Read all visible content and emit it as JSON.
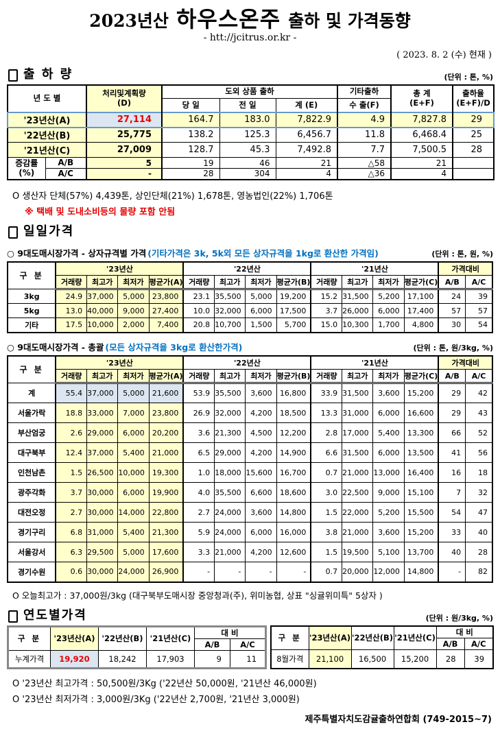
{
  "header": {
    "title_year": "2023년산",
    "title_product": "하우스온주",
    "title_rest": "출하 및 가격동향",
    "url": "- htt://jcitrus.or.kr -",
    "date": "( 2023. 8. 2 (수) 현재 )"
  },
  "shipment": {
    "section_title": "출 하 량",
    "unit": "(단위 : 톤, %)",
    "table": {
      "col_year": "년 도 별",
      "col_plan1": "처리및계획량",
      "col_plan2": "(D)",
      "col_group": "도외 상품 출하",
      "col_today": "당 일",
      "col_prev": "전 일",
      "col_sum": "계 (E)",
      "col_etc": "기타출하",
      "col_export": "수 출(F)",
      "col_total1": "총   계",
      "col_total2": "(E+F)",
      "col_rate1": "출하율",
      "col_rate2": "(E+F)/D",
      "rows": [
        {
          "label": "'23년산(A)",
          "plan": "27,114",
          "today": "164.7",
          "prev": "183.0",
          "sum": "7,822.9",
          "export": "4.9",
          "total": "7,827.8",
          "rate": "29"
        },
        {
          "label": "'22년산(B)",
          "plan": "25,775",
          "today": "138.2",
          "prev": "125.3",
          "sum": "6,456.7",
          "export": "11.8",
          "total": "6,468.4",
          "rate": "25"
        },
        {
          "label": "'21년산(C)",
          "plan": "27,009",
          "today": "128.7",
          "prev": "45.3",
          "sum": "7,492.8",
          "export": "7.7",
          "total": "7,500.5",
          "rate": "28"
        }
      ],
      "change_label1": "증감률",
      "change_label2": "(%)",
      "change_rows": [
        {
          "label": "A/B",
          "plan": "5",
          "today": "19",
          "prev": "46",
          "sum": "21",
          "export": "△58",
          "total": "21",
          "rate": ""
        },
        {
          "label": "A/C",
          "plan": "-",
          "today": "28",
          "prev": "304",
          "sum": "4",
          "export": "△36",
          "total": "4",
          "rate": ""
        }
      ]
    },
    "note1": "O 생산자 단체(57%) 4,439톤, 상인단체(21%) 1,678톤, 영농법인(22%) 1,706톤",
    "note2": "※ 택배 및 도내소비등의 물량 포함 안됨"
  },
  "daily": {
    "section_title": "일일가격",
    "sub1_title": "○ 9대도매시장가격 - 상자규격별 가격",
    "sub1_note": "(기타가격은 3k, 5k외 모든 상자규격을 1kg로 환산한 가격임)",
    "sub1_unit": "(단위 : 톤,  원, %)",
    "col_label": "구   분",
    "group_y23": "'23년산",
    "group_y22": "'22년산",
    "group_y21": "'21년산",
    "group_ratio": "가격대비",
    "sub_headers": [
      "거래량",
      "최고가",
      "최저가",
      "평균가(A)",
      "거래량",
      "최고가",
      "최저가",
      "평균가(B)",
      "거래량",
      "최고가",
      "최저가",
      "평균가(C)",
      "A/B",
      "A/C"
    ],
    "by_size_rows": [
      [
        "3kg",
        "24.9",
        "37,000",
        "5,000",
        "23,800",
        "23.1",
        "35,500",
        "5,000",
        "19,200",
        "15.2",
        "31,500",
        "5,200",
        "17,100",
        "24",
        "39"
      ],
      [
        "5kg",
        "13.0",
        "40,000",
        "9,000",
        "27,400",
        "10.0",
        "32,000",
        "6,000",
        "17,500",
        "3.7",
        "26,000",
        "6,000",
        "17,400",
        "57",
        "57"
      ],
      [
        "기타",
        "17.5",
        "10,000",
        "2,000",
        "7,400",
        "20.8",
        "10,700",
        "1,500",
        "5,700",
        "15.0",
        "10,300",
        "1,700",
        "4,800",
        "30",
        "54"
      ]
    ],
    "sub2_title": "○ 9대도매시장가격 - 총괄",
    "sub2_note": "(모든 상자규격을 3kg로 환산한가격)",
    "sub2_unit": "(단위 : 톤, 원/3kg, %)",
    "overall_rows": [
      [
        "계",
        "55.4",
        "37,000",
        "5,000",
        "21,600",
        "53.9",
        "35,500",
        "3,600",
        "16,800",
        "33.9",
        "31,500",
        "3,600",
        "15,200",
        "29",
        "42"
      ],
      [
        "서울가락",
        "18.8",
        "33,000",
        "7,000",
        "23,800",
        "26.9",
        "32,000",
        "4,200",
        "18,500",
        "13.3",
        "31,000",
        "6,000",
        "16,600",
        "29",
        "43"
      ],
      [
        "부산엄궁",
        "2.6",
        "29,000",
        "6,000",
        "20,200",
        "3.6",
        "21,300",
        "4,500",
        "12,200",
        "2.8",
        "17,000",
        "5,400",
        "13,300",
        "66",
        "52"
      ],
      [
        "대구북부",
        "12.4",
        "37,000",
        "5,400",
        "21,000",
        "6.5",
        "29,000",
        "4,200",
        "14,900",
        "6.6",
        "31,500",
        "6,000",
        "13,500",
        "41",
        "56"
      ],
      [
        "인천남촌",
        "1.5",
        "26,500",
        "10,000",
        "19,300",
        "1.0",
        "18,000",
        "15,600",
        "16,700",
        "0.7",
        "21,000",
        "13,000",
        "16,400",
        "16",
        "18"
      ],
      [
        "광주각화",
        "3.7",
        "30,000",
        "6,000",
        "19,900",
        "4.0",
        "35,500",
        "6,600",
        "18,600",
        "3.0",
        "22,500",
        "9,000",
        "15,100",
        "7",
        "32"
      ],
      [
        "대전오정",
        "2.7",
        "30,000",
        "14,000",
        "22,800",
        "2.7",
        "24,000",
        "3,600",
        "14,800",
        "1.5",
        "22,000",
        "5,200",
        "15,500",
        "54",
        "47"
      ],
      [
        "경기구리",
        "6.8",
        "31,000",
        "5,400",
        "21,300",
        "5.9",
        "24,000",
        "6,000",
        "16,000",
        "3.8",
        "21,000",
        "3,600",
        "15,200",
        "33",
        "40"
      ],
      [
        "서울강서",
        "6.3",
        "29,500",
        "5,000",
        "17,600",
        "3.3",
        "21,000",
        "4,200",
        "12,600",
        "1.5",
        "19,500",
        "5,100",
        "13,700",
        "40",
        "28"
      ],
      [
        "경기수원",
        "0.6",
        "30,000",
        "24,000",
        "26,900",
        "-",
        "-",
        "-",
        "-",
        "0.7",
        "20,000",
        "12,000",
        "14,800",
        "-",
        "82"
      ]
    ],
    "today_high_note": "O 오늘최고가 : 37,000원/3kg (대구북부도매시장 중앙청과(주), 위미농협, 상표 \"싱귤위미특\" 5상자 )"
  },
  "yearly": {
    "section_title": "연도별가격",
    "unit": "(단위 : 원/3kg, %)",
    "col_label": "구   분",
    "col_y23": "'23년산(A)",
    "col_y22": "'22년산(B)",
    "col_y21": "'21년산(C)",
    "col_ratio": "대      비",
    "col_ab": "A/B",
    "col_ac": "A/C",
    "left_row": {
      "label": "누계가격",
      "y23": "19,920",
      "y22": "18,242",
      "y21": "17,903",
      "ab": "9",
      "ac": "11"
    },
    "right_row": {
      "label": "8월가격",
      "y23": "21,100",
      "y22": "16,500",
      "y21": "15,200",
      "ab": "28",
      "ac": "39"
    },
    "note1": "O '23년산 최고가격 : 50,500원/3Kg ('22년산 50,000원, '21년산 46,000원)",
    "note2": "O '23년산 최저가격 :   3,000원/3Kg ('22년산  2,700원, '21년산  3,000원)"
  },
  "footer": "제주특별자치도감귤출하연합회 (749-2015~7)",
  "colors": {
    "highlight_yellow": "#FFFFCC",
    "highlight_blue": "#DCE6F1",
    "accent_red": "#E60000",
    "note_blue": "#0070C0",
    "row_highlight_border": "#6699CC"
  }
}
